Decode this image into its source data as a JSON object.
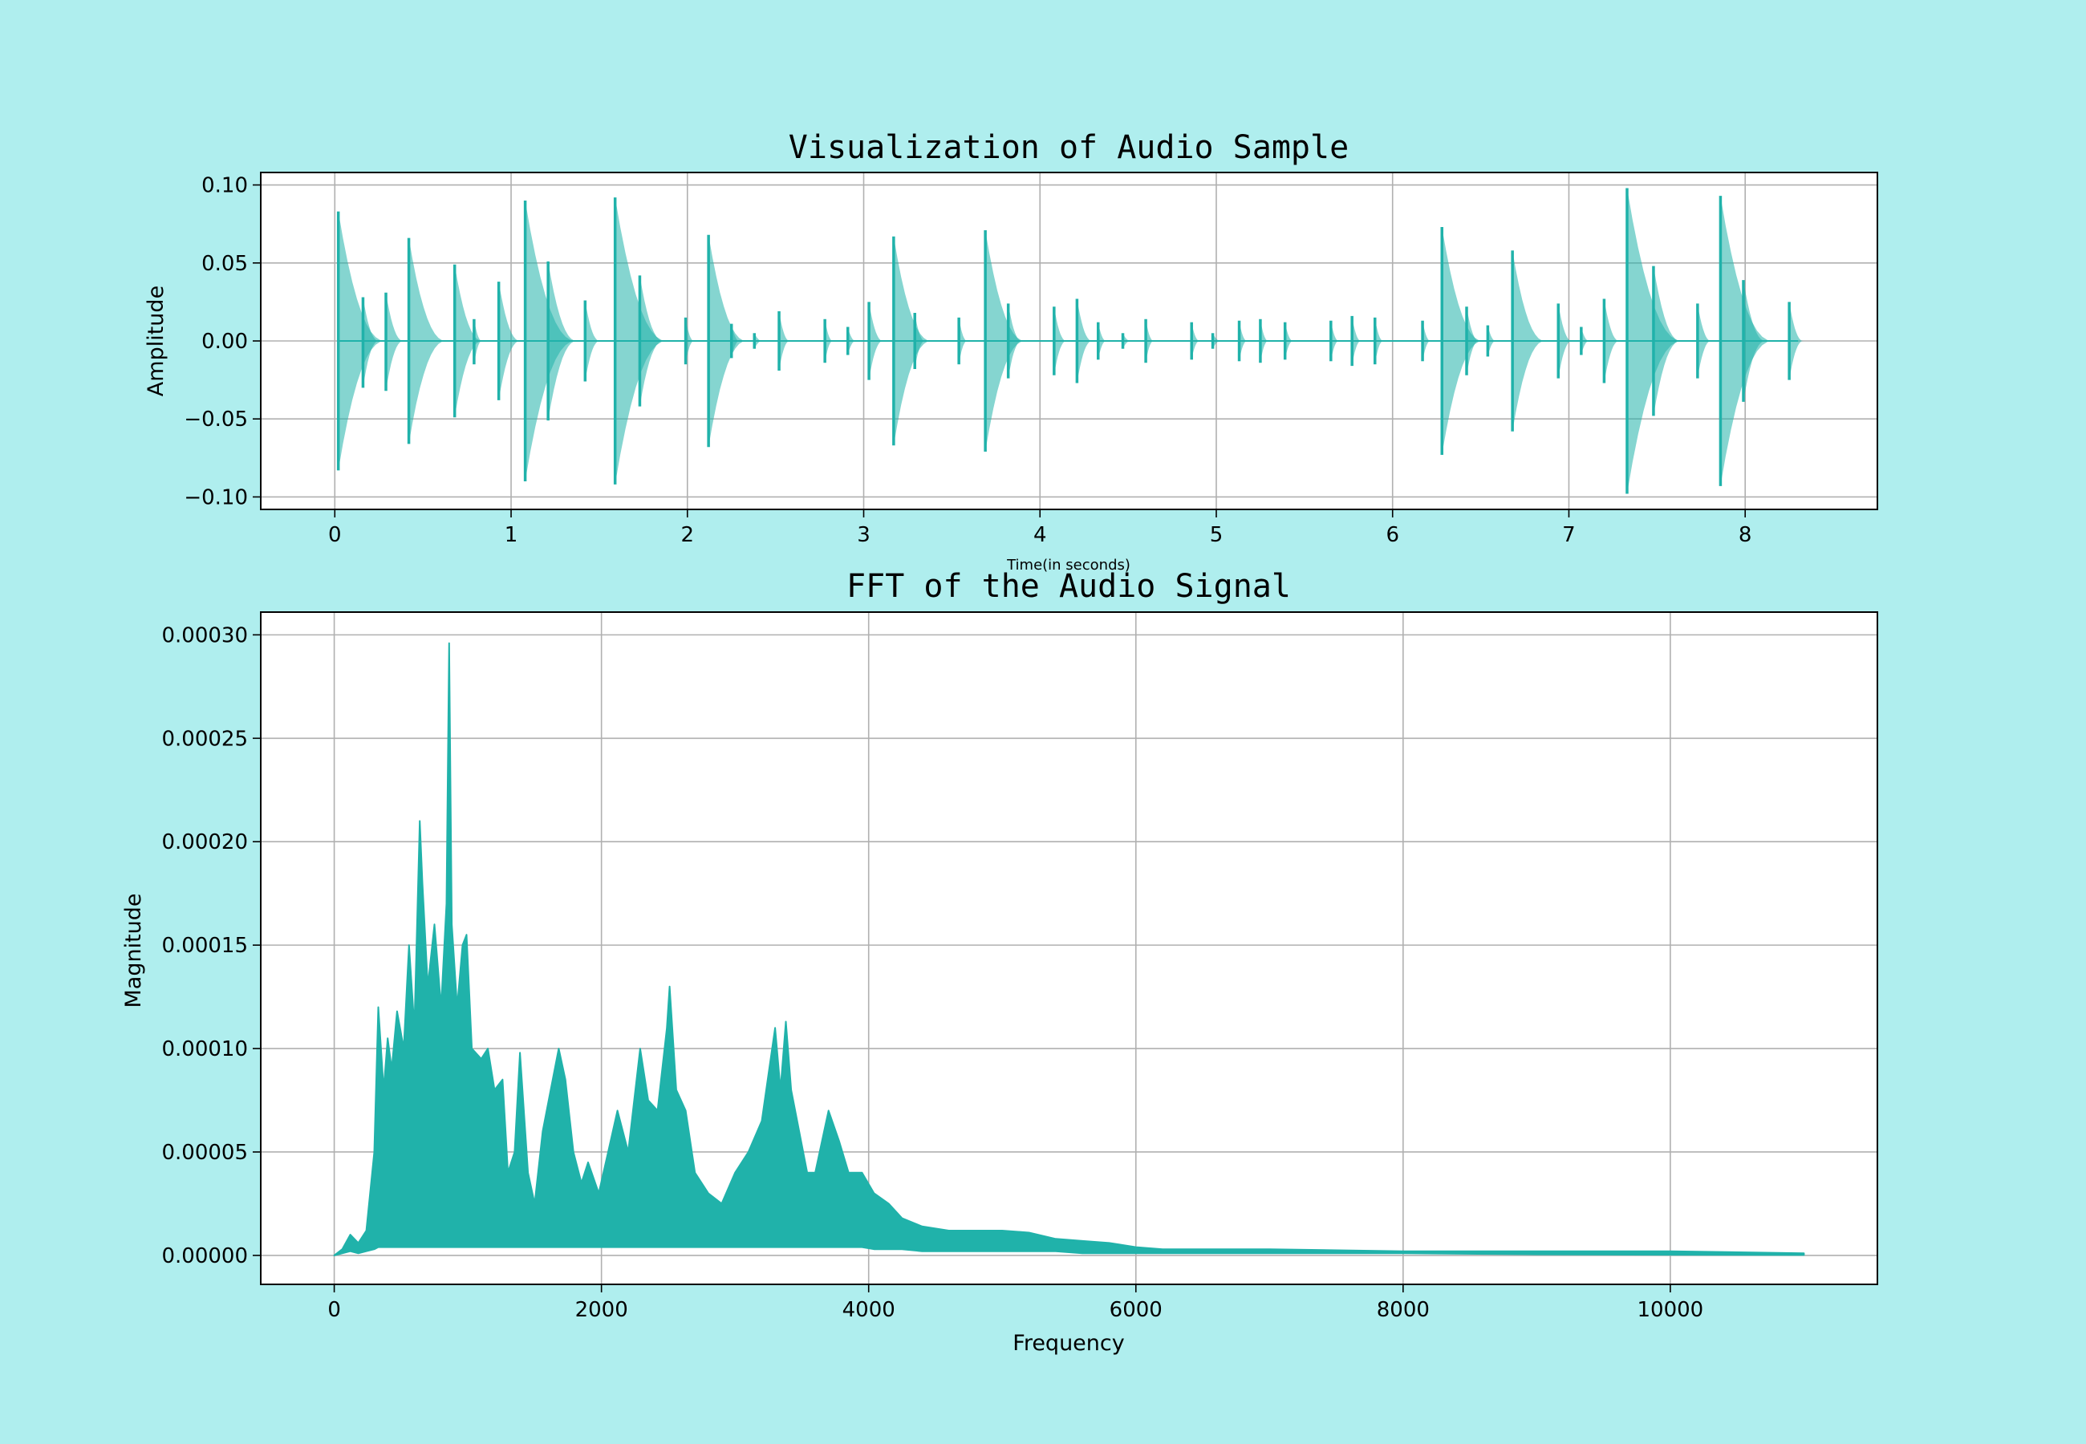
{
  "colors": {
    "figure_background": "#afeeee",
    "axes_background": "#ffffff",
    "series": "#20b2aa",
    "grid": "#b0b0b0"
  },
  "chart_data": [
    {
      "type": "line",
      "title": "Visualization of Audio Sample",
      "xlabel": "Time(in seconds)",
      "ylabel": "Amplitude",
      "xlim": [
        -0.42,
        8.75
      ],
      "ylim": [
        -0.108,
        0.108
      ],
      "grid": true,
      "x_ticks": [
        0,
        1,
        2,
        3,
        4,
        5,
        6,
        7,
        8
      ],
      "x_tick_labels": [
        "0",
        "1",
        "2",
        "3",
        "4",
        "5",
        "6",
        "7",
        "8"
      ],
      "y_ticks": [
        0.1,
        0.05,
        0.0,
        -0.05,
        -0.1
      ],
      "y_tick_labels": [
        "0.10",
        "0.05",
        "0.00",
        "−0.05",
        "−0.10"
      ],
      "series": [
        {
          "events": [
            {
              "t": 0.02,
              "pos": 0.083,
              "neg": -0.083
            },
            {
              "t": 0.16,
              "pos": 0.028,
              "neg": -0.03
            },
            {
              "t": 0.29,
              "pos": 0.031,
              "neg": -0.032
            },
            {
              "t": 0.42,
              "pos": 0.066,
              "neg": -0.066
            },
            {
              "t": 0.68,
              "pos": 0.049,
              "neg": -0.049
            },
            {
              "t": 0.79,
              "pos": 0.014,
              "neg": -0.015
            },
            {
              "t": 0.93,
              "pos": 0.038,
              "neg": -0.038
            },
            {
              "t": 1.08,
              "pos": 0.09,
              "neg": -0.09
            },
            {
              "t": 1.21,
              "pos": 0.051,
              "neg": -0.051
            },
            {
              "t": 1.42,
              "pos": 0.026,
              "neg": -0.026
            },
            {
              "t": 1.59,
              "pos": 0.092,
              "neg": -0.092
            },
            {
              "t": 1.73,
              "pos": 0.042,
              "neg": -0.042
            },
            {
              "t": 1.99,
              "pos": 0.015,
              "neg": -0.015
            },
            {
              "t": 2.12,
              "pos": 0.068,
              "neg": -0.068
            },
            {
              "t": 2.25,
              "pos": 0.011,
              "neg": -0.011
            },
            {
              "t": 2.38,
              "pos": 0.005,
              "neg": -0.005
            },
            {
              "t": 2.52,
              "pos": 0.019,
              "neg": -0.019
            },
            {
              "t": 2.78,
              "pos": 0.014,
              "neg": -0.014
            },
            {
              "t": 2.91,
              "pos": 0.009,
              "neg": -0.009
            },
            {
              "t": 3.03,
              "pos": 0.025,
              "neg": -0.025
            },
            {
              "t": 3.17,
              "pos": 0.067,
              "neg": -0.067
            },
            {
              "t": 3.29,
              "pos": 0.018,
              "neg": -0.018
            },
            {
              "t": 3.54,
              "pos": 0.015,
              "neg": -0.015
            },
            {
              "t": 3.69,
              "pos": 0.071,
              "neg": -0.071
            },
            {
              "t": 3.82,
              "pos": 0.024,
              "neg": -0.024
            },
            {
              "t": 4.08,
              "pos": 0.022,
              "neg": -0.022
            },
            {
              "t": 4.21,
              "pos": 0.027,
              "neg": -0.027
            },
            {
              "t": 4.33,
              "pos": 0.012,
              "neg": -0.012
            },
            {
              "t": 4.47,
              "pos": 0.005,
              "neg": -0.005
            },
            {
              "t": 4.6,
              "pos": 0.014,
              "neg": -0.014
            },
            {
              "t": 4.86,
              "pos": 0.012,
              "neg": -0.012
            },
            {
              "t": 4.98,
              "pos": 0.005,
              "neg": -0.005
            },
            {
              "t": 5.13,
              "pos": 0.013,
              "neg": -0.013
            },
            {
              "t": 5.25,
              "pos": 0.014,
              "neg": -0.014
            },
            {
              "t": 5.39,
              "pos": 0.012,
              "neg": -0.012
            },
            {
              "t": 5.65,
              "pos": 0.013,
              "neg": -0.013
            },
            {
              "t": 5.77,
              "pos": 0.016,
              "neg": -0.016
            },
            {
              "t": 5.9,
              "pos": 0.015,
              "neg": -0.015
            },
            {
              "t": 6.17,
              "pos": 0.013,
              "neg": -0.013
            },
            {
              "t": 6.28,
              "pos": 0.073,
              "neg": -0.073
            },
            {
              "t": 6.42,
              "pos": 0.022,
              "neg": -0.022
            },
            {
              "t": 6.54,
              "pos": 0.01,
              "neg": -0.01
            },
            {
              "t": 6.68,
              "pos": 0.058,
              "neg": -0.058
            },
            {
              "t": 6.94,
              "pos": 0.024,
              "neg": -0.024
            },
            {
              "t": 7.07,
              "pos": 0.009,
              "neg": -0.009
            },
            {
              "t": 7.2,
              "pos": 0.027,
              "neg": -0.027
            },
            {
              "t": 7.33,
              "pos": 0.098,
              "neg": -0.098
            },
            {
              "t": 7.48,
              "pos": 0.048,
              "neg": -0.048
            },
            {
              "t": 7.73,
              "pos": 0.024,
              "neg": -0.024
            },
            {
              "t": 7.86,
              "pos": 0.093,
              "neg": -0.093
            },
            {
              "t": 7.99,
              "pos": 0.039,
              "neg": -0.039
            },
            {
              "t": 8.25,
              "pos": 0.025,
              "neg": -0.025
            }
          ]
        }
      ]
    },
    {
      "type": "area",
      "title": "FFT of the Audio Signal",
      "xlabel": "Frequency",
      "ylabel": "Magnitude",
      "xlim": [
        -550,
        11550
      ],
      "ylim": [
        -1.4e-05,
        0.000311
      ],
      "grid": true,
      "x_ticks": [
        0,
        2000,
        4000,
        6000,
        8000,
        10000
      ],
      "x_tick_labels": [
        "0",
        "2000",
        "4000",
        "6000",
        "8000",
        "10000"
      ],
      "y_ticks": [
        0.0003,
        0.00025,
        0.0002,
        0.00015,
        0.0001,
        5e-05,
        0.0
      ],
      "y_tick_labels": [
        "0.00030",
        "0.00025",
        "0.00020",
        "0.00015",
        "0.00010",
        "0.00005",
        "0.00000"
      ],
      "series": [
        {
          "x": [
            0,
            60,
            120,
            180,
            240,
            300,
            330,
            370,
            400,
            430,
            470,
            520,
            560,
            600,
            640,
            660,
            700,
            750,
            800,
            840,
            860,
            880,
            920,
            960,
            990,
            1030,
            1100,
            1150,
            1200,
            1260,
            1300,
            1350,
            1390,
            1450,
            1500,
            1560,
            1620,
            1680,
            1730,
            1790,
            1850,
            1900,
            1980,
            2050,
            2120,
            2200,
            2290,
            2350,
            2420,
            2490,
            2510,
            2560,
            2630,
            2700,
            2800,
            2900,
            3000,
            3100,
            3200,
            3300,
            3340,
            3380,
            3420,
            3480,
            3540,
            3600,
            3700,
            3780,
            3850,
            3950,
            4040,
            4150,
            4250,
            4400,
            4600,
            4800,
            5000,
            5200,
            5400,
            5600,
            5800,
            6000,
            6200,
            7000,
            8000,
            9000,
            10000,
            11000
          ],
          "upper": [
            0,
            3e-06,
            1e-05,
            6e-06,
            1.2e-05,
            5e-05,
            0.00012,
            8e-05,
            0.000105,
            9e-05,
            0.000118,
            0.0001,
            0.00015,
            0.00011,
            0.00021,
            0.00018,
            0.00013,
            0.00016,
            0.00012,
            0.00017,
            0.000296,
            0.00016,
            0.00012,
            0.00015,
            0.000155,
            0.0001,
            9.5e-05,
            0.0001,
            8e-05,
            8.5e-05,
            4e-05,
            5e-05,
            9.8e-05,
            4e-05,
            2.5e-05,
            6e-05,
            8e-05,
            0.0001,
            8.5e-05,
            5e-05,
            3.5e-05,
            4.5e-05,
            3e-05,
            5e-05,
            7e-05,
            5e-05,
            0.0001,
            7.5e-05,
            7e-05,
            0.00011,
            0.00013,
            8e-05,
            7e-05,
            4e-05,
            3e-05,
            2.5e-05,
            4e-05,
            5e-05,
            6.5e-05,
            0.00011,
            8e-05,
            0.000113,
            8e-05,
            6e-05,
            4e-05,
            4e-05,
            7e-05,
            5.5e-05,
            4e-05,
            4e-05,
            3e-05,
            2.5e-05,
            1.8e-05,
            1.4e-05,
            1.2e-05,
            1.2e-05,
            1.2e-05,
            1.1e-05,
            8e-06,
            7e-06,
            6e-06,
            4e-06,
            3e-06,
            3e-06,
            2e-06,
            2e-06,
            2e-06,
            1e-06
          ],
          "lower": [
            0,
            1e-06,
            2e-06,
            1e-06,
            2e-06,
            3e-06,
            4e-06,
            4e-06,
            4e-06,
            4e-06,
            4e-06,
            4e-06,
            4e-06,
            4e-06,
            4e-06,
            4e-06,
            4e-06,
            4e-06,
            4e-06,
            4e-06,
            4e-06,
            4e-06,
            4e-06,
            4e-06,
            4e-06,
            4e-06,
            4e-06,
            4e-06,
            4e-06,
            4e-06,
            4e-06,
            4e-06,
            4e-06,
            4e-06,
            4e-06,
            4e-06,
            4e-06,
            4e-06,
            4e-06,
            4e-06,
            4e-06,
            4e-06,
            4e-06,
            4e-06,
            4e-06,
            4e-06,
            4e-06,
            4e-06,
            4e-06,
            4e-06,
            4e-06,
            4e-06,
            4e-06,
            4e-06,
            4e-06,
            4e-06,
            4e-06,
            4e-06,
            4e-06,
            4e-06,
            4e-06,
            4e-06,
            4e-06,
            4e-06,
            4e-06,
            4e-06,
            4e-06,
            4e-06,
            4e-06,
            4e-06,
            3e-06,
            3e-06,
            3e-06,
            2e-06,
            2e-06,
            2e-06,
            2e-06,
            2e-06,
            2e-06,
            1e-06,
            1e-06,
            1e-06,
            1e-06,
            1e-06,
            1e-06,
            5e-07,
            3e-07,
            2e-07
          ]
        }
      ]
    }
  ]
}
